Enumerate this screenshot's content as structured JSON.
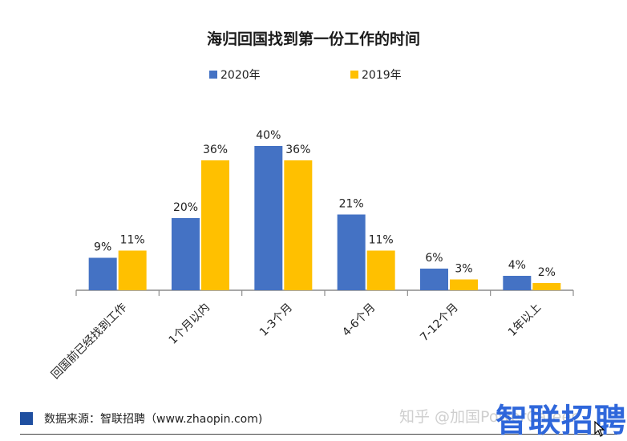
{
  "title": "海归回国找到第一份工作的时间",
  "legend": [
    {
      "name": "2020年",
      "color": "#4472c4"
    },
    {
      "name": "2019年",
      "color": "#ffc000"
    }
  ],
  "chart_data": {
    "type": "bar",
    "title": "海归回国找到第一份工作的时间",
    "categories": [
      "回国前已经找到工作",
      "1个月以内",
      "1-3个月",
      "4-6个月",
      "7-12个月",
      "1年以上"
    ],
    "series": [
      {
        "name": "2020年",
        "color": "#4472c4",
        "values": [
          9,
          20,
          40,
          21,
          6,
          4
        ]
      },
      {
        "name": "2019年",
        "color": "#ffc000",
        "values": [
          11,
          36,
          36,
          11,
          3,
          2
        ]
      }
    ],
    "value_suffix": "%",
    "ylim": [
      0,
      44
    ],
    "grid": false,
    "legend_position": "top"
  },
  "footer": {
    "source": "数据来源：智联招聘（www.zhaopin.com)",
    "square_color": "#1f4fa0"
  },
  "watermark": "知乎 @加国PowerCareer",
  "brand_logo": "智联招聘"
}
